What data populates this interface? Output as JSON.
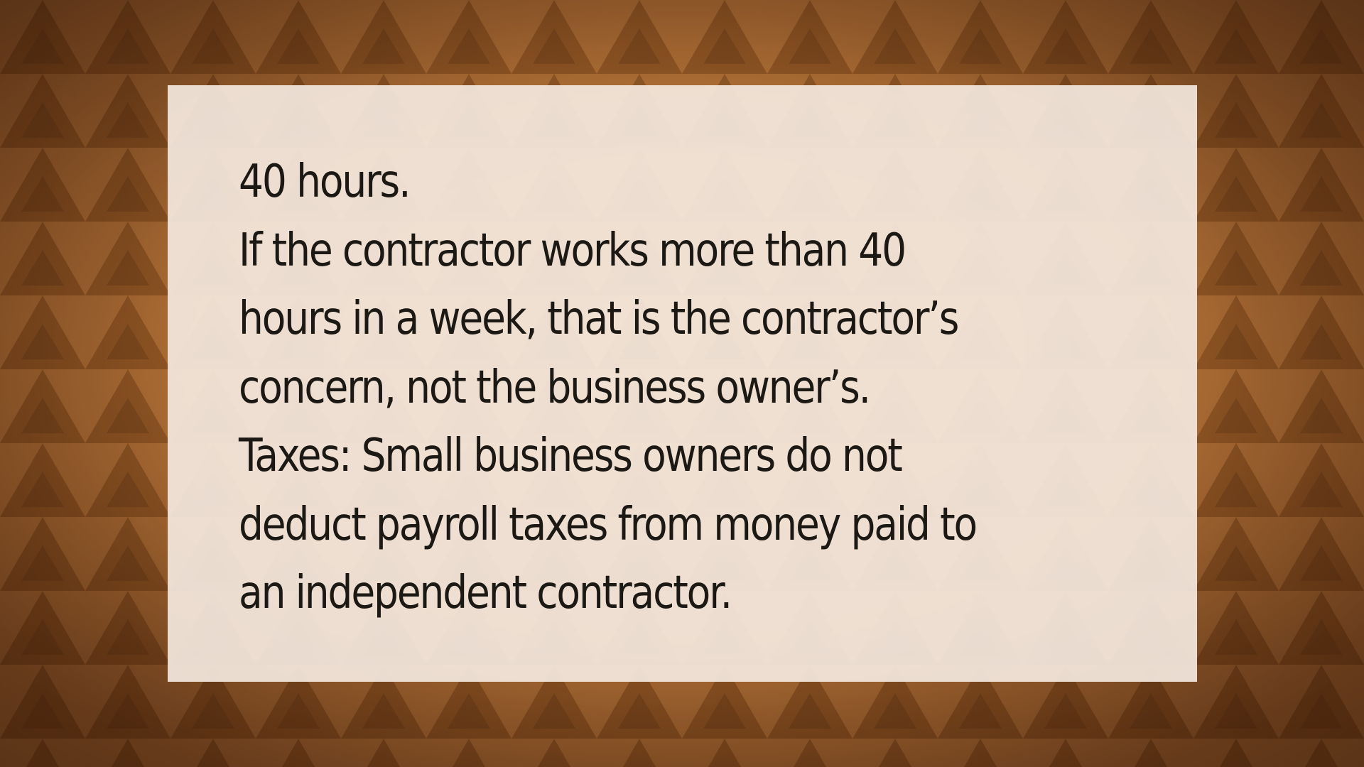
{
  "slide": {
    "lines": [
      "40 hours.",
      "If the contractor works more than 40",
      "hours in a week, that is the contractor’s",
      "concern, not the business owner’s.",
      "Taxes: Small business owners do not",
      "deduct payroll taxes from money paid to",
      "an independent contractor."
    ]
  },
  "colors": {
    "background": "#a8662c",
    "card": "#f3e7de",
    "text": "#1c1814"
  }
}
